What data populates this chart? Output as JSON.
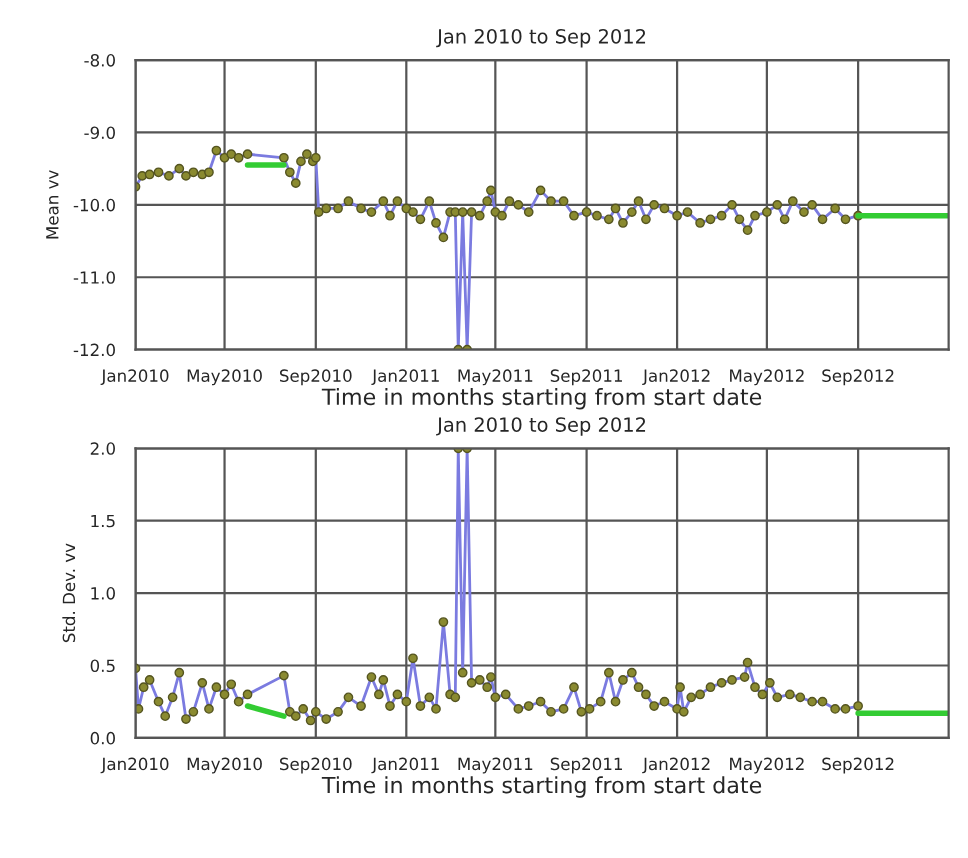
{
  "chart_data": [
    {
      "type": "line",
      "title": "Jan 2010 to Sep 2012",
      "xlabel": "Time in months starting from start date",
      "ylabel": "Mean vv",
      "xlim": [
        "2010-01-01",
        "2013-01-01"
      ],
      "ylim": [
        -12,
        -8
      ],
      "xticks": [
        {
          "value": "2010-01",
          "label": "Jan2010"
        },
        {
          "value": "2010-05",
          "label": "May2010"
        },
        {
          "value": "2010-09",
          "label": "Sep2010"
        },
        {
          "value": "2011-01",
          "label": "Jan2011"
        },
        {
          "value": "2011-05",
          "label": "May2011"
        },
        {
          "value": "2011-09",
          "label": "Sep2011"
        },
        {
          "value": "2012-01",
          "label": "Jan2012"
        },
        {
          "value": "2012-05",
          "label": "May2012"
        },
        {
          "value": "2012-09",
          "label": "Sep2012"
        }
      ],
      "yticks": [
        {
          "value": -12,
          "label": "-12.0"
        },
        {
          "value": -11,
          "label": "-11.0"
        },
        {
          "value": -10,
          "label": "-10.0"
        },
        {
          "value": -9,
          "label": "-9.0"
        },
        {
          "value": -8,
          "label": "-8.0"
        }
      ],
      "grid": true,
      "marker": "circle",
      "series": [
        {
          "color": "#7b7be0",
          "x": [
            "2010-01-01",
            "2010-01-10",
            "2010-01-20",
            "2010-02-01",
            "2010-02-15",
            "2010-03-01",
            "2010-03-10",
            "2010-03-20",
            "2010-04-01",
            "2010-04-10",
            "2010-04-20",
            "2010-05-01",
            "2010-05-10",
            "2010-05-20",
            "2010-06-01",
            "2010-07-20",
            "2010-07-28",
            "2010-08-05",
            "2010-08-12",
            "2010-08-20",
            "2010-08-28",
            "2010-09-01",
            "2010-09-05",
            "2010-09-15",
            "2010-10-01",
            "2010-10-15",
            "2010-11-01",
            "2010-11-15",
            "2010-12-01",
            "2010-12-10",
            "2010-12-20",
            "2011-01-01",
            "2011-01-10",
            "2011-01-20",
            "2011-02-01",
            "2011-02-10",
            "2011-02-20",
            "2011-03-01",
            "2011-03-08",
            "2011-03-12",
            "2011-03-18",
            "2011-03-24",
            "2011-03-30",
            "2011-04-10",
            "2011-04-20",
            "2011-04-25",
            "2011-05-01",
            "2011-05-10",
            "2011-05-20",
            "2011-06-01",
            "2011-06-15",
            "2011-07-01",
            "2011-07-15",
            "2011-08-01",
            "2011-08-15",
            "2011-09-01",
            "2011-09-15",
            "2011-10-01",
            "2011-10-10",
            "2011-10-20",
            "2011-11-01",
            "2011-11-10",
            "2011-11-20",
            "2011-12-01",
            "2011-12-15",
            "2012-01-01",
            "2012-01-15",
            "2012-02-01",
            "2012-02-15",
            "2012-03-01",
            "2012-03-15",
            "2012-03-25",
            "2012-04-05",
            "2012-04-15",
            "2012-05-01",
            "2012-05-15",
            "2012-05-25",
            "2012-06-05",
            "2012-06-20",
            "2012-07-01",
            "2012-07-15",
            "2012-08-01",
            "2012-08-15",
            "2012-09-01"
          ],
          "values": [
            -9.75,
            -9.6,
            -9.58,
            -9.55,
            -9.6,
            -9.5,
            -9.6,
            -9.55,
            -9.58,
            -9.55,
            -9.25,
            -9.35,
            -9.3,
            -9.35,
            -9.3,
            -9.35,
            -9.55,
            -9.7,
            -9.4,
            -9.3,
            -9.4,
            -9.35,
            -10.1,
            -10.05,
            -10.05,
            -9.95,
            -10.05,
            -10.1,
            -9.95,
            -10.15,
            -9.95,
            -10.05,
            -10.1,
            -10.2,
            -9.95,
            -10.25,
            -10.45,
            -10.1,
            -10.1,
            -12.0,
            -10.1,
            -12.0,
            -10.1,
            -10.15,
            -9.95,
            -9.8,
            -10.1,
            -10.15,
            -9.95,
            -10.0,
            -10.1,
            -9.8,
            -9.95,
            -9.95,
            -10.15,
            -10.1,
            -10.15,
            -10.2,
            -10.05,
            -10.25,
            -10.1,
            -9.95,
            -10.2,
            -10.0,
            -10.05,
            -10.15,
            -10.1,
            -10.25,
            -10.2,
            -10.15,
            -10.0,
            -10.2,
            -10.35,
            -10.15,
            -10.1,
            -10.0,
            -10.2,
            -9.95,
            -10.1,
            -10.0,
            -10.2,
            -10.05,
            -10.2,
            -10.15
          ]
        },
        {
          "color": "#33cc33",
          "marker": "none",
          "x": [
            "2010-06-01",
            "2010-07-20",
            "2010-07-21",
            "2012-09-01",
            "2013-01-01"
          ],
          "values": [
            -9.45,
            -9.45,
            null,
            -10.15,
            -10.15
          ]
        }
      ]
    },
    {
      "type": "line",
      "title": "Jan 2010 to Sep 2012",
      "xlabel": "Time in months starting from start date",
      "ylabel": "Std. Dev. vv",
      "xlim": [
        "2010-01-01",
        "2013-01-01"
      ],
      "ylim": [
        0,
        2
      ],
      "xticks": [
        {
          "value": "2010-01",
          "label": "Jan2010"
        },
        {
          "value": "2010-05",
          "label": "May2010"
        },
        {
          "value": "2010-09",
          "label": "Sep2010"
        },
        {
          "value": "2011-01",
          "label": "Jan2011"
        },
        {
          "value": "2011-05",
          "label": "May2011"
        },
        {
          "value": "2011-09",
          "label": "Sep2011"
        },
        {
          "value": "2012-01",
          "label": "Jan2012"
        },
        {
          "value": "2012-05",
          "label": "May2012"
        },
        {
          "value": "2012-09",
          "label": "Sep2012"
        }
      ],
      "yticks": [
        {
          "value": 0,
          "label": "0.0"
        },
        {
          "value": 0.5,
          "label": "0.5"
        },
        {
          "value": 1,
          "label": "1.0"
        },
        {
          "value": 1.5,
          "label": "1.5"
        },
        {
          "value": 2,
          "label": "2.0"
        }
      ],
      "grid": true,
      "marker": "circle",
      "series": [
        {
          "color": "#7b7be0",
          "x": [
            "2010-01-01",
            "2010-01-05",
            "2010-01-12",
            "2010-01-20",
            "2010-02-01",
            "2010-02-10",
            "2010-02-20",
            "2010-03-01",
            "2010-03-10",
            "2010-03-20",
            "2010-04-01",
            "2010-04-10",
            "2010-04-20",
            "2010-05-01",
            "2010-05-10",
            "2010-05-20",
            "2010-06-01",
            "2010-07-20",
            "2010-07-28",
            "2010-08-05",
            "2010-08-15",
            "2010-08-25",
            "2010-09-01",
            "2010-09-15",
            "2010-10-01",
            "2010-10-15",
            "2010-11-01",
            "2010-11-15",
            "2010-11-25",
            "2010-12-01",
            "2010-12-10",
            "2010-12-20",
            "2011-01-01",
            "2011-01-10",
            "2011-01-20",
            "2011-02-01",
            "2011-02-10",
            "2011-02-20",
            "2011-03-01",
            "2011-03-08",
            "2011-03-12",
            "2011-03-18",
            "2011-03-24",
            "2011-03-30",
            "2011-04-10",
            "2011-04-20",
            "2011-04-25",
            "2011-05-01",
            "2011-05-15",
            "2011-06-01",
            "2011-06-15",
            "2011-07-01",
            "2011-07-15",
            "2011-08-01",
            "2011-08-15",
            "2011-08-25",
            "2011-09-05",
            "2011-09-20",
            "2011-10-01",
            "2011-10-10",
            "2011-10-20",
            "2011-11-01",
            "2011-11-10",
            "2011-11-20",
            "2011-12-01",
            "2011-12-15",
            "2012-01-01",
            "2012-01-05",
            "2012-01-10",
            "2012-01-20",
            "2012-02-01",
            "2012-02-15",
            "2012-03-01",
            "2012-03-15",
            "2012-04-01",
            "2012-04-05",
            "2012-04-15",
            "2012-04-25",
            "2012-05-05",
            "2012-05-15",
            "2012-06-01",
            "2012-06-15",
            "2012-07-01",
            "2012-07-15",
            "2012-08-01",
            "2012-08-15",
            "2012-09-01"
          ],
          "values": [
            0.48,
            0.2,
            0.35,
            0.4,
            0.25,
            0.15,
            0.28,
            0.45,
            0.13,
            0.18,
            0.38,
            0.2,
            0.35,
            0.3,
            0.37,
            0.25,
            0.3,
            0.43,
            0.18,
            0.15,
            0.2,
            0.12,
            0.18,
            0.13,
            0.18,
            0.28,
            0.22,
            0.42,
            0.3,
            0.4,
            0.22,
            0.3,
            0.25,
            0.55,
            0.22,
            0.28,
            0.2,
            0.8,
            0.3,
            0.28,
            2.0,
            0.45,
            2.0,
            0.38,
            0.4,
            0.35,
            0.42,
            0.28,
            0.3,
            0.2,
            0.22,
            0.25,
            0.18,
            0.2,
            0.35,
            0.18,
            0.2,
            0.25,
            0.45,
            0.25,
            0.4,
            0.45,
            0.35,
            0.3,
            0.22,
            0.25,
            0.2,
            0.35,
            0.18,
            0.28,
            0.3,
            0.35,
            0.38,
            0.4,
            0.42,
            0.52,
            0.35,
            0.3,
            0.38,
            0.28,
            0.3,
            0.28,
            0.25,
            0.25,
            0.2,
            0.2,
            0.22
          ]
        },
        {
          "color": "#33cc33",
          "marker": "none",
          "x": [
            "2010-06-01",
            "2010-07-20",
            "2010-07-21",
            "2012-09-01",
            "2013-01-01"
          ],
          "values": [
            0.22,
            0.15,
            null,
            0.17,
            0.17
          ]
        }
      ]
    }
  ]
}
